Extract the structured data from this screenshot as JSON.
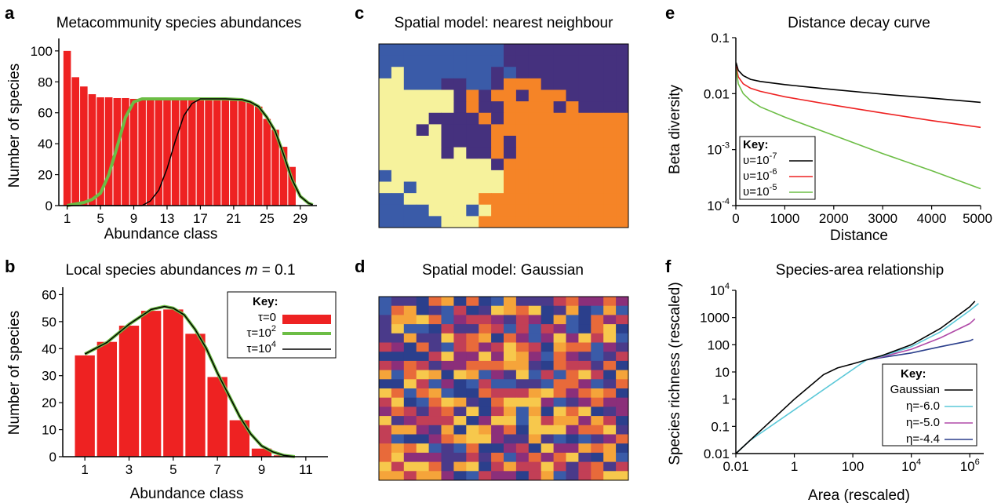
{
  "panels": {
    "a": {
      "letter": "a",
      "title": "Metacommunity species abundances",
      "xlabel": "Abundance class",
      "ylabel": "Number of species"
    },
    "b": {
      "letter": "b",
      "title_prefix": "Local species abundances ",
      "title_m": "m",
      "title_suffix": " = 0.1",
      "xlabel": "Abundance class",
      "ylabel": "Number of species"
    },
    "c": {
      "letter": "c",
      "title": "Spatial model: nearest neighbour"
    },
    "d": {
      "letter": "d",
      "title": "Spatial model: Gaussian"
    },
    "e": {
      "letter": "e",
      "title": "Distance decay curve",
      "xlabel": "Distance",
      "ylabel": "Beta diversity"
    },
    "f": {
      "letter": "f",
      "title": "Species-area relationship",
      "xlabel": "Area (rescaled)",
      "ylabel": "Species richness (rescaled)"
    }
  },
  "legends": {
    "b": {
      "title": "Key:",
      "items": [
        {
          "base": "τ=0",
          "sup": "",
          "color": "#ee2222",
          "kind": "bar"
        },
        {
          "base": "τ=10",
          "sup": "2",
          "color": "#6cbd45",
          "kind": "line"
        },
        {
          "base": "τ=10",
          "sup": "4",
          "color": "#000000",
          "kind": "line"
        }
      ]
    },
    "e": {
      "title": "Key:",
      "items": [
        {
          "base": "υ=10",
          "sup": "-7",
          "color": "#000000"
        },
        {
          "base": "υ=10",
          "sup": "-6",
          "color": "#ee2222"
        },
        {
          "base": "υ=10",
          "sup": "-5",
          "color": "#6cbd45"
        }
      ]
    },
    "f": {
      "title": "Key:",
      "items": [
        {
          "label": "Gaussian",
          "color": "#000000"
        },
        {
          "label": "η=-6.0",
          "color": "#5bc8d8"
        },
        {
          "label": "η=-5.0",
          "color": "#b04aa8"
        },
        {
          "label": "η=-4.4",
          "color": "#2b3f8c"
        }
      ]
    }
  },
  "chart_data": [
    {
      "panel": "a",
      "type": "bar",
      "xticks": [
        "1",
        "5",
        "9",
        "13",
        "17",
        "21",
        "25",
        "29"
      ],
      "yticks": [
        "0",
        "20",
        "40",
        "60",
        "80",
        "100"
      ],
      "xlim": [
        0,
        31
      ],
      "ylim": [
        0,
        105
      ],
      "bar_color": "#ee2222",
      "bars": {
        "x": [
          1,
          2,
          3,
          4,
          5,
          6,
          7,
          8,
          9,
          10,
          11,
          12,
          13,
          14,
          15,
          16,
          17,
          18,
          19,
          20,
          21,
          22,
          23,
          24,
          25,
          26,
          27,
          28
        ],
        "values": [
          100,
          83,
          77,
          72,
          70,
          70,
          69.5,
          69.5,
          69,
          69,
          69,
          69,
          69,
          69,
          69,
          69,
          69,
          69,
          69,
          69,
          69,
          68,
          67,
          64,
          56,
          49,
          38,
          25
        ]
      },
      "series": [
        {
          "color": "#6cbd45",
          "points": [
            [
              1,
              0
            ],
            [
              2,
              1
            ],
            [
              3,
              2
            ],
            [
              4,
              4
            ],
            [
              5,
              8
            ],
            [
              6,
              20
            ],
            [
              7,
              38
            ],
            [
              8,
              57
            ],
            [
              9,
              67
            ],
            [
              10,
              69
            ],
            [
              11,
              69
            ],
            [
              14,
              69
            ],
            [
              17,
              69
            ],
            [
              20,
              69
            ],
            [
              22,
              68.5
            ],
            [
              23,
              67
            ],
            [
              24,
              64
            ],
            [
              25,
              57
            ],
            [
              26,
              48
            ],
            [
              27,
              33
            ],
            [
              28,
              17
            ],
            [
              29,
              6
            ],
            [
              30,
              1.5
            ],
            [
              30.5,
              0.5
            ]
          ]
        },
        {
          "color": "#000000",
          "points": [
            [
              1,
              0
            ],
            [
              10,
              0
            ],
            [
              11,
              3
            ],
            [
              12,
              10
            ],
            [
              13,
              24
            ],
            [
              14,
              42
            ],
            [
              15,
              58
            ],
            [
              16,
              66
            ],
            [
              17,
              69
            ],
            [
              20,
              69
            ],
            [
              22,
              68.5
            ],
            [
              23,
              67
            ],
            [
              24,
              64
            ],
            [
              25,
              57
            ],
            [
              26,
              48
            ],
            [
              27,
              33
            ],
            [
              28,
              17
            ],
            [
              29,
              6
            ],
            [
              30,
              1.5
            ],
            [
              30.5,
              0.5
            ]
          ]
        }
      ]
    },
    {
      "panel": "b",
      "type": "bar",
      "xticks": [
        "1",
        "3",
        "5",
        "7",
        "9",
        "11"
      ],
      "yticks": [
        "0",
        "10",
        "20",
        "30",
        "40",
        "50",
        "60"
      ],
      "xlim": [
        0,
        12
      ],
      "ylim": [
        0,
        61
      ],
      "bar_color": "#ee2222",
      "bars": {
        "x": [
          1,
          2,
          3,
          4,
          5,
          6,
          7,
          8,
          9,
          10
        ],
        "values": [
          37.5,
          42.5,
          48.5,
          54,
          54.5,
          45.5,
          29.5,
          13.5,
          3,
          0.5
        ]
      },
      "series": [
        {
          "color": "#6cbd45",
          "points": [
            [
              1,
              38
            ],
            [
              2,
              42.3
            ],
            [
              3,
              49
            ],
            [
              4,
              54.5
            ],
            [
              4.6,
              55.6
            ],
            [
              5,
              55
            ],
            [
              5.5,
              52.5
            ],
            [
              6,
              47
            ],
            [
              6.5,
              40
            ],
            [
              7,
              31
            ],
            [
              7.5,
              23
            ],
            [
              8,
              15
            ],
            [
              8.5,
              8.5
            ],
            [
              9,
              4
            ],
            [
              9.5,
              1.8
            ],
            [
              10,
              0.5
            ],
            [
              10.5,
              0
            ]
          ]
        },
        {
          "color": "#000000",
          "points": [
            [
              1,
              38
            ],
            [
              2,
              42.3
            ],
            [
              3,
              49
            ],
            [
              4,
              54.5
            ],
            [
              4.6,
              55.6
            ],
            [
              5,
              55
            ],
            [
              5.5,
              52.5
            ],
            [
              6,
              47
            ],
            [
              6.5,
              40
            ],
            [
              7,
              31
            ],
            [
              7.5,
              23
            ],
            [
              8,
              15
            ],
            [
              8.5,
              8.5
            ],
            [
              9,
              4
            ],
            [
              9.5,
              1.8
            ],
            [
              10,
              0.5
            ],
            [
              10.5,
              0
            ]
          ]
        }
      ]
    },
    {
      "panel": "c",
      "type": "heatmap",
      "cols": 20,
      "rows": 16,
      "palette": [
        "#f6f29c",
        "#f58427",
        "#3a5ba8",
        "#45317e"
      ],
      "seed": 7
    },
    {
      "panel": "d",
      "type": "heatmap",
      "cols": 20,
      "rows": 20,
      "palette": [
        "#2b3f8c",
        "#3a5ba8",
        "#4a3a8a",
        "#8b2f7a",
        "#c23f56",
        "#e86a3a",
        "#f5a43a",
        "#f7c84c"
      ],
      "seed": 11
    },
    {
      "panel": "e",
      "type": "line",
      "xscale": "linear",
      "yscale": "log",
      "xlim": [
        0,
        5000
      ],
      "ylim": [
        0.0001,
        0.1
      ],
      "xticks": [
        "0",
        "1000",
        "2000",
        "3000",
        "4000",
        "5000"
      ],
      "yticks": [
        {
          "base": "10",
          "sup": "-4"
        },
        {
          "base": "10",
          "sup": "-3"
        },
        {
          "base": "0.01",
          "sup": ""
        },
        {
          "base": "0.1",
          "sup": ""
        }
      ],
      "series": [
        {
          "color": "#000000",
          "points": [
            [
              5,
              0.036
            ],
            [
              50,
              0.026
            ],
            [
              150,
              0.021
            ],
            [
              300,
              0.018
            ],
            [
              500,
              0.0165
            ],
            [
              1000,
              0.0145
            ],
            [
              2000,
              0.0118
            ],
            [
              3000,
              0.0098
            ],
            [
              4000,
              0.0083
            ],
            [
              5000,
              0.007
            ]
          ]
        },
        {
          "color": "#ee2222",
          "points": [
            [
              5,
              0.031
            ],
            [
              50,
              0.02
            ],
            [
              150,
              0.015
            ],
            [
              300,
              0.0125
            ],
            [
              500,
              0.011
            ],
            [
              1000,
              0.0088
            ],
            [
              2000,
              0.0062
            ],
            [
              3000,
              0.0045
            ],
            [
              4000,
              0.0033
            ],
            [
              5000,
              0.0025
            ]
          ]
        },
        {
          "color": "#6cbd45",
          "points": [
            [
              5,
              0.028
            ],
            [
              50,
              0.015
            ],
            [
              150,
              0.01
            ],
            [
              300,
              0.0075
            ],
            [
              500,
              0.0058
            ],
            [
              1000,
              0.0038
            ],
            [
              2000,
              0.0018
            ],
            [
              3000,
              0.00085
            ],
            [
              4000,
              0.00042
            ],
            [
              5000,
              0.0002
            ]
          ]
        }
      ]
    },
    {
      "panel": "f",
      "type": "line",
      "xscale": "log",
      "yscale": "log",
      "xlim": [
        0.01,
        3000000
      ],
      "ylim": [
        0.01,
        10000
      ],
      "xticks": [
        {
          "base": "0.01",
          "sup": ""
        },
        {
          "base": "1",
          "sup": ""
        },
        {
          "base": "100",
          "sup": ""
        },
        {
          "base": "10",
          "sup": "4"
        },
        {
          "base": "10",
          "sup": "6"
        }
      ],
      "yticks": [
        "0.01",
        "0.1",
        "1",
        "10",
        "100",
        "1000",
        {
          "base": "10",
          "sup": "4"
        }
      ],
      "series": [
        {
          "color": "#000000",
          "points": [
            [
              0.01,
              0.01
            ],
            [
              0.1,
              0.1
            ],
            [
              1,
              1
            ],
            [
              10,
              8
            ],
            [
              30,
              14
            ],
            [
              100,
              20
            ],
            [
              300,
              28
            ],
            [
              1000,
              40
            ],
            [
              10000,
              100
            ],
            [
              100000,
              400
            ],
            [
              1000000,
              2500
            ],
            [
              1500000,
              4000
            ]
          ]
        },
        {
          "color": "#5bc8d8",
          "points": [
            [
              0.01,
              0.01
            ],
            [
              0.03,
              0.03
            ],
            [
              300,
              28
            ],
            [
              1000,
              38
            ],
            [
              10000,
              85
            ],
            [
              100000,
              300
            ],
            [
              1000000,
              1800
            ],
            [
              2000000,
              3300
            ]
          ]
        },
        {
          "color": "#b04aa8",
          "points": [
            [
              300,
              28
            ],
            [
              1000,
              36
            ],
            [
              10000,
              68
            ],
            [
              100000,
              180
            ],
            [
              1000000,
              600
            ],
            [
              1500000,
              900
            ]
          ]
        },
        {
          "color": "#2b3f8c",
          "points": [
            [
              300,
              28
            ],
            [
              1000,
              34
            ],
            [
              10000,
              50
            ],
            [
              100000,
              85
            ],
            [
              1000000,
              140
            ],
            [
              1300000,
              160
            ]
          ]
        }
      ]
    }
  ]
}
